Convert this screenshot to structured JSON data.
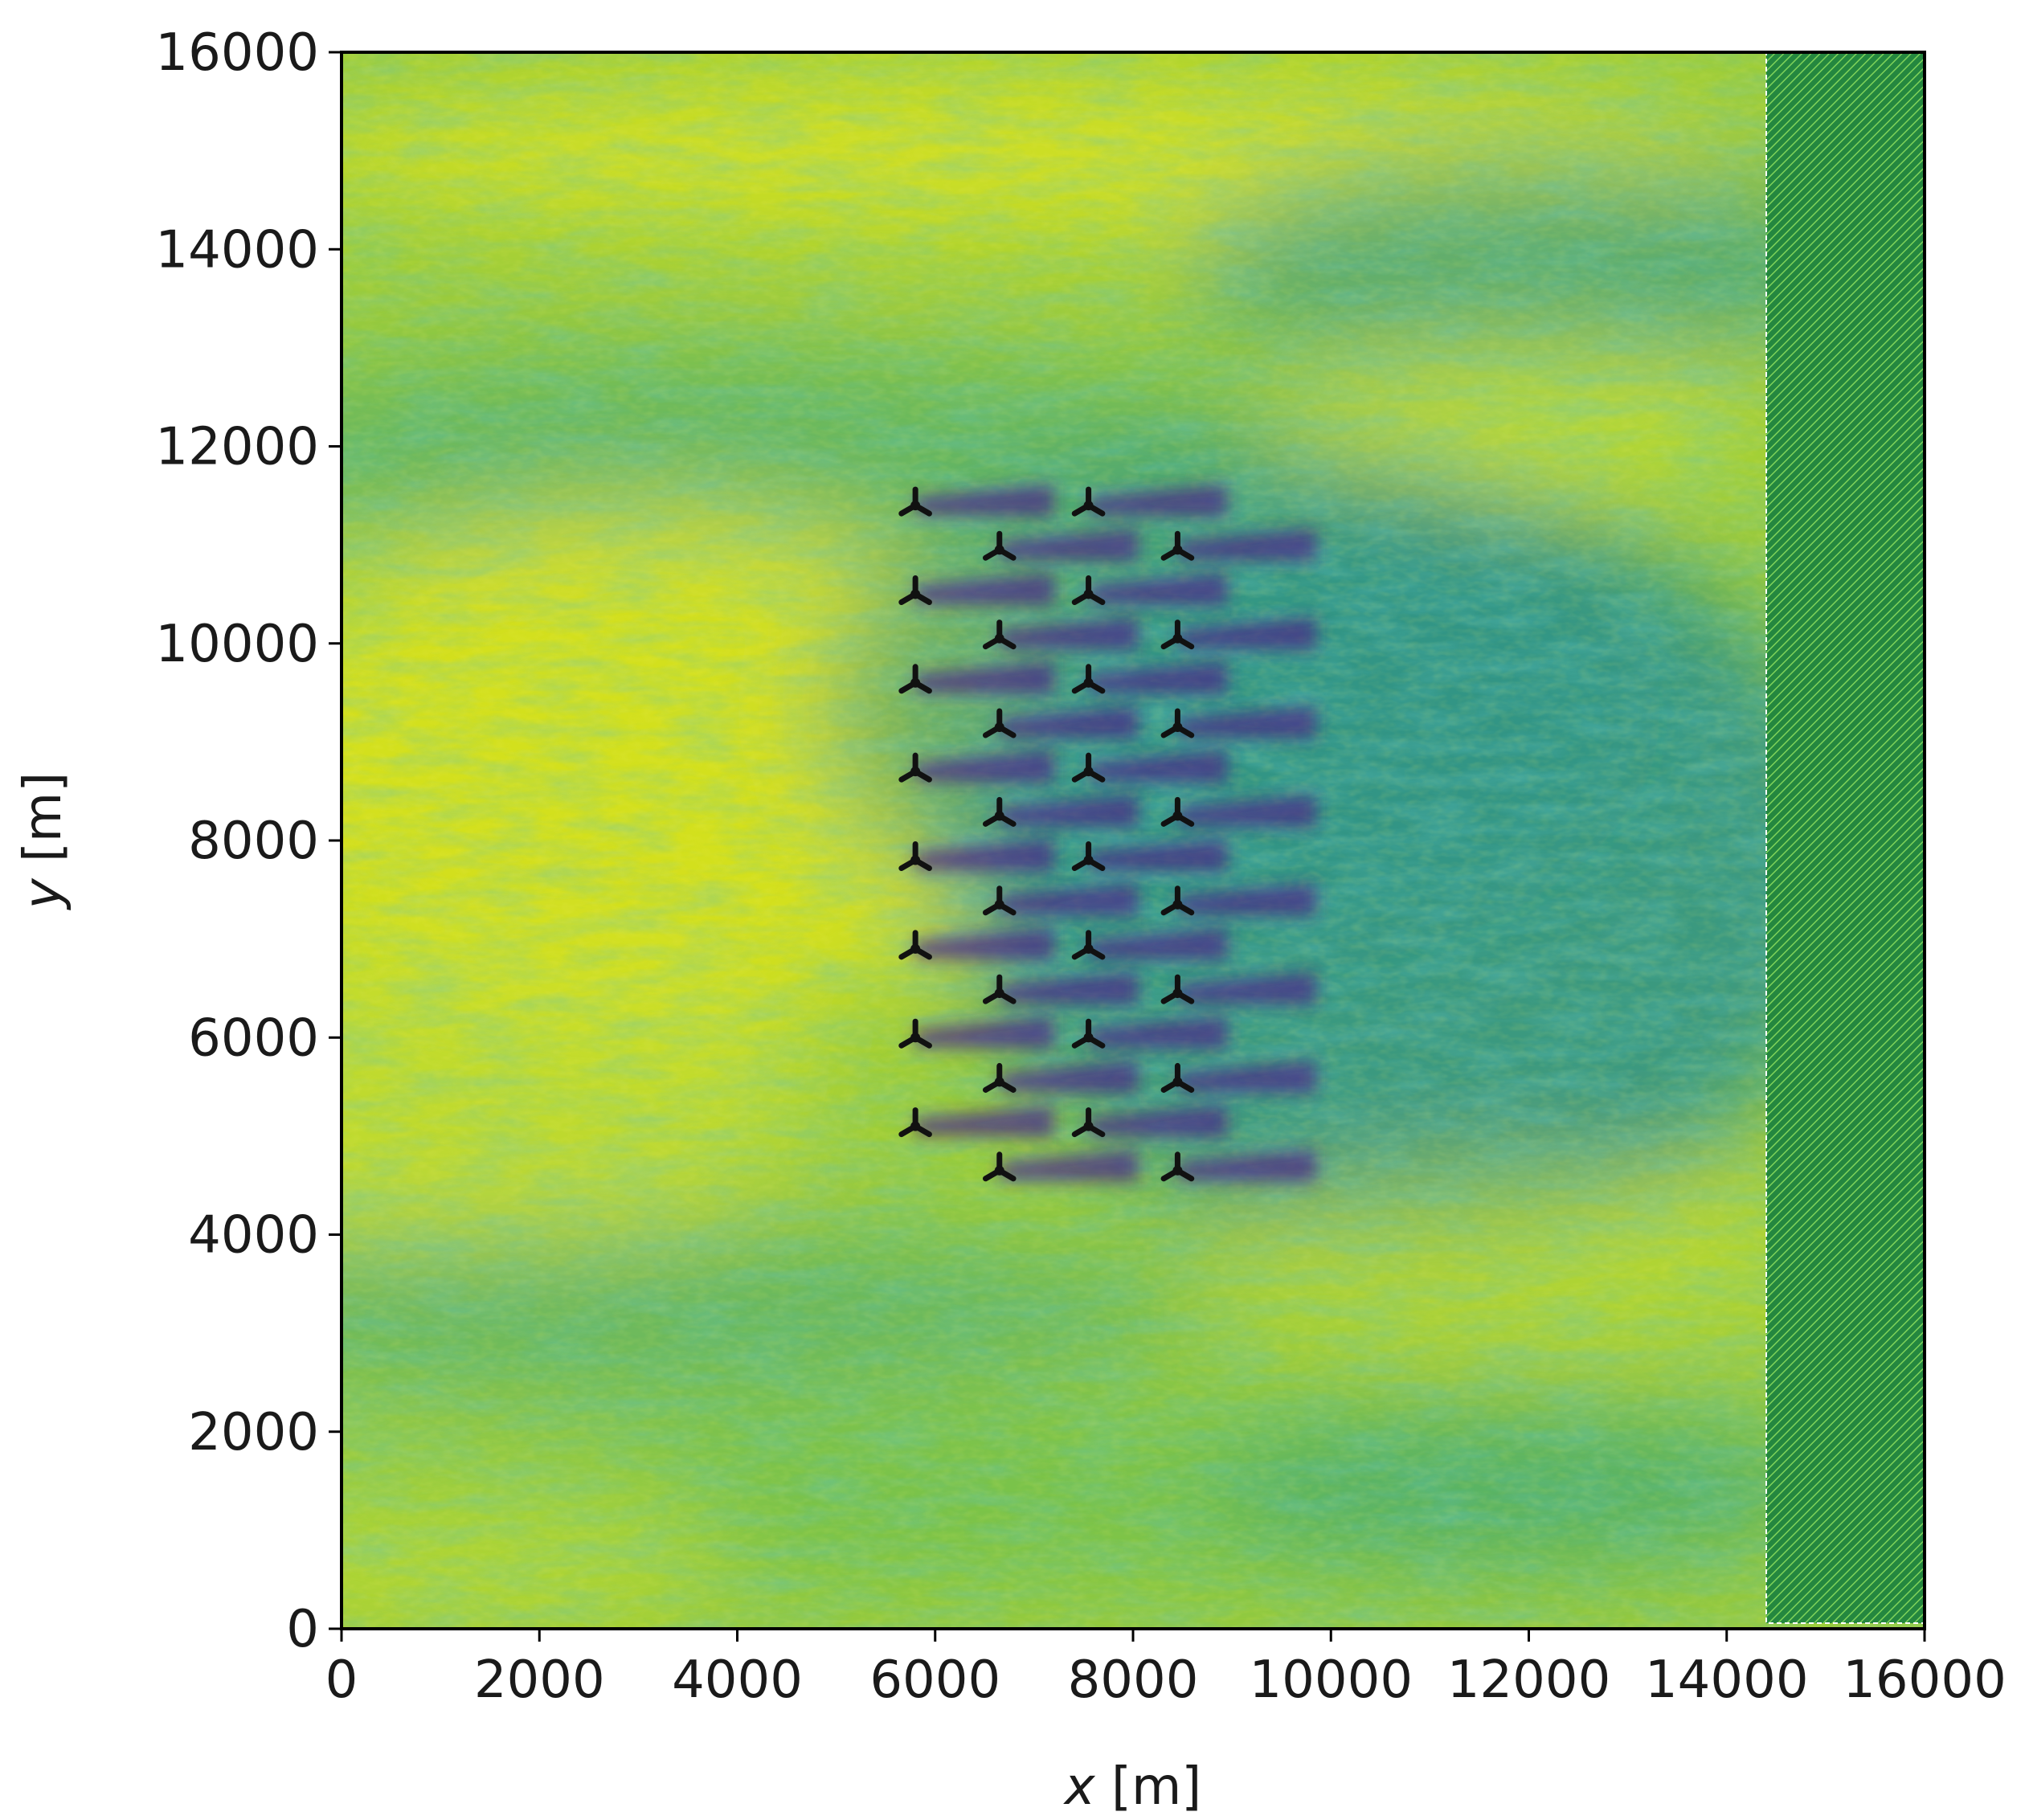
{
  "chart_data": {
    "type": "heatmap",
    "title": "",
    "xlabel": {
      "var": "x",
      "unit": " [m]"
    },
    "ylabel": {
      "var": "y",
      "unit": " [m]"
    },
    "xlim": [
      0,
      16000
    ],
    "ylim": [
      0,
      16000
    ],
    "xticks": [
      "0",
      "2000",
      "4000",
      "6000",
      "8000",
      "10000",
      "12000",
      "14000",
      "16000"
    ],
    "yticks": [
      "0",
      "2000",
      "4000",
      "6000",
      "8000",
      "10000",
      "12000",
      "14000",
      "16000"
    ],
    "colormap": "viridis",
    "colorbar": false,
    "grid": false,
    "hatched_region": {
      "x": [
        14400,
        16000
      ],
      "y": [
        0,
        16000
      ],
      "color": "#2e9e4a"
    },
    "turbine_marker_color": "#111111",
    "turbines": [
      {
        "x": 5800,
        "y": 11400
      },
      {
        "x": 7550,
        "y": 11400
      },
      {
        "x": 6650,
        "y": 10950
      },
      {
        "x": 8450,
        "y": 10950
      },
      {
        "x": 5800,
        "y": 10500
      },
      {
        "x": 7550,
        "y": 10500
      },
      {
        "x": 6650,
        "y": 10050
      },
      {
        "x": 8450,
        "y": 10050
      },
      {
        "x": 5800,
        "y": 9600
      },
      {
        "x": 7550,
        "y": 9600
      },
      {
        "x": 6650,
        "y": 9150
      },
      {
        "x": 8450,
        "y": 9150
      },
      {
        "x": 5800,
        "y": 8700
      },
      {
        "x": 7550,
        "y": 8700
      },
      {
        "x": 6650,
        "y": 8250
      },
      {
        "x": 8450,
        "y": 8250
      },
      {
        "x": 5800,
        "y": 7800
      },
      {
        "x": 7550,
        "y": 7800
      },
      {
        "x": 6650,
        "y": 7350
      },
      {
        "x": 8450,
        "y": 7350
      },
      {
        "x": 5800,
        "y": 6900
      },
      {
        "x": 7550,
        "y": 6900
      },
      {
        "x": 6650,
        "y": 6450
      },
      {
        "x": 8450,
        "y": 6450
      },
      {
        "x": 5800,
        "y": 6000
      },
      {
        "x": 7550,
        "y": 6000
      },
      {
        "x": 6650,
        "y": 5550
      },
      {
        "x": 8450,
        "y": 5550
      },
      {
        "x": 5800,
        "y": 5100
      },
      {
        "x": 7550,
        "y": 5100
      },
      {
        "x": 6650,
        "y": 4650
      },
      {
        "x": 8450,
        "y": 4650
      }
    ],
    "wake_color": "#4a2a88",
    "wake_length": 1400
  }
}
